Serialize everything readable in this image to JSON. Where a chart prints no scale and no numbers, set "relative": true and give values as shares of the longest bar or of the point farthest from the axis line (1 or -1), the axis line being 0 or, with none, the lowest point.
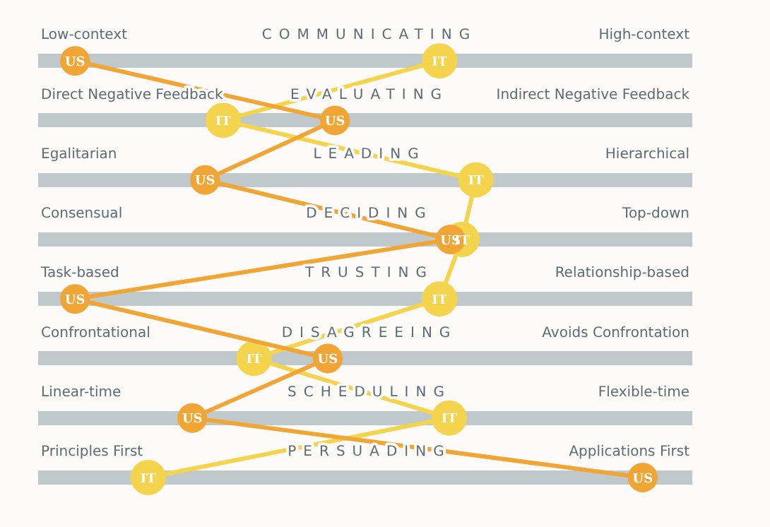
{
  "chart_data": {
    "type": "line",
    "relative": true,
    "orientation": "horizontal",
    "marker": "circle",
    "legend": false,
    "grid": "y",
    "categories": [
      "COMMUNICATING",
      "EVALUATING",
      "LEADING",
      "DECIDING",
      "TRUSTING",
      "DISAGREEING",
      "SCHEDULING",
      "PERSUADING"
    ],
    "series": [
      {
        "name": "US",
        "color": "#f0a535",
        "values": [
          0.061,
          0.491,
          0.276,
          0.682,
          0.061,
          0.479,
          0.255,
          1
        ]
      },
      {
        "name": "IT",
        "color": "#f5d44d",
        "values": [
          0.664,
          0.306,
          0.724,
          0.701,
          0.664,
          0.357,
          0.68,
          0.182
        ]
      }
    ],
    "annotations": [
      "Low-context",
      "High-context",
      "Direct Negative Feedback",
      "Indirect Negative Feedback",
      "Egalitarian",
      "Hierarchical",
      "Consensual",
      "Top-down",
      "Task-based",
      "Relationship-based",
      "Confrontational",
      "Avoids Confrontation",
      "Linear-time",
      "Flexible-time",
      "Principles First",
      "Applications First"
    ]
  }
}
